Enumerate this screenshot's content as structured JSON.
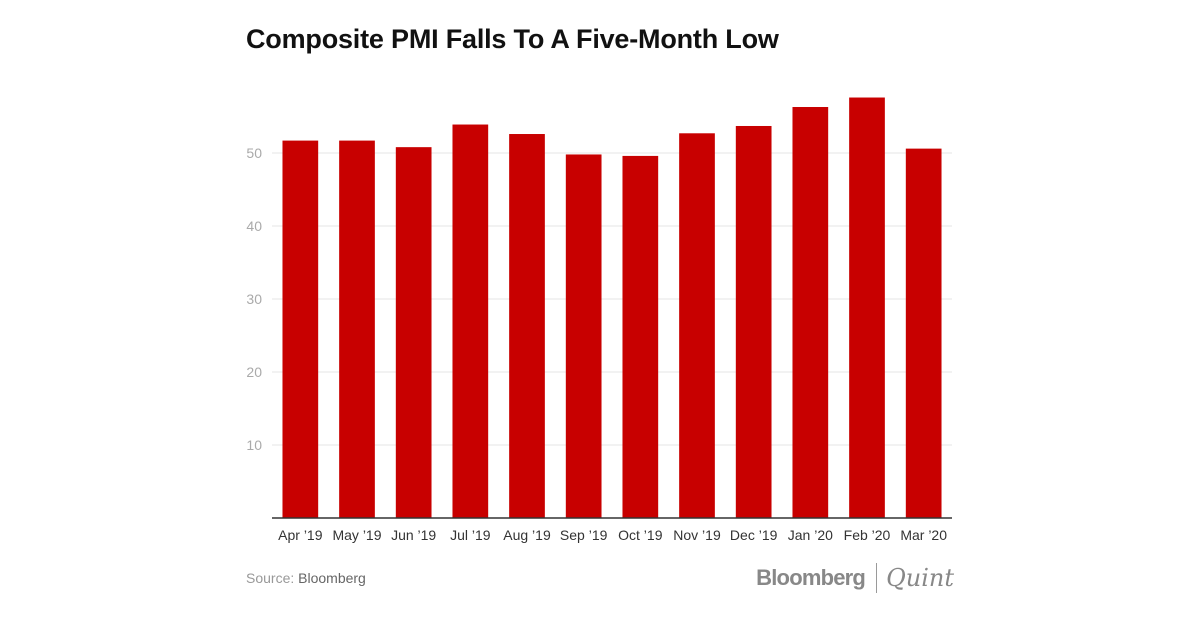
{
  "chart_data": {
    "type": "bar",
    "title": "Composite PMI Falls To A Five-Month Low",
    "categories": [
      "Apr ’19",
      "May ’19",
      "Jun ’19",
      "Jul ’19",
      "Aug ’19",
      "Sep ’19",
      "Oct ’19",
      "Nov ’19",
      "Dec ’19",
      "Jan ’20",
      "Feb ’20",
      "Mar ’20"
    ],
    "values": [
      51.7,
      51.7,
      50.8,
      53.9,
      52.6,
      49.8,
      49.6,
      52.7,
      53.7,
      56.3,
      57.6,
      50.6
    ],
    "yticks": [
      10,
      20,
      30,
      40,
      50
    ],
    "ylim": [
      0,
      60
    ],
    "grid": true,
    "xlabel": "",
    "ylabel": "",
    "colors": {
      "bar": "#c80000",
      "grid": "#e6e6e6",
      "axis": "#333333",
      "tick_label": "#aaaaaa",
      "category_label": "#333333"
    }
  },
  "footer": {
    "source_label": "Source: ",
    "source_value": "Bloomberg"
  },
  "brand": {
    "name_left": "Bloomberg",
    "name_right": "Quint"
  }
}
